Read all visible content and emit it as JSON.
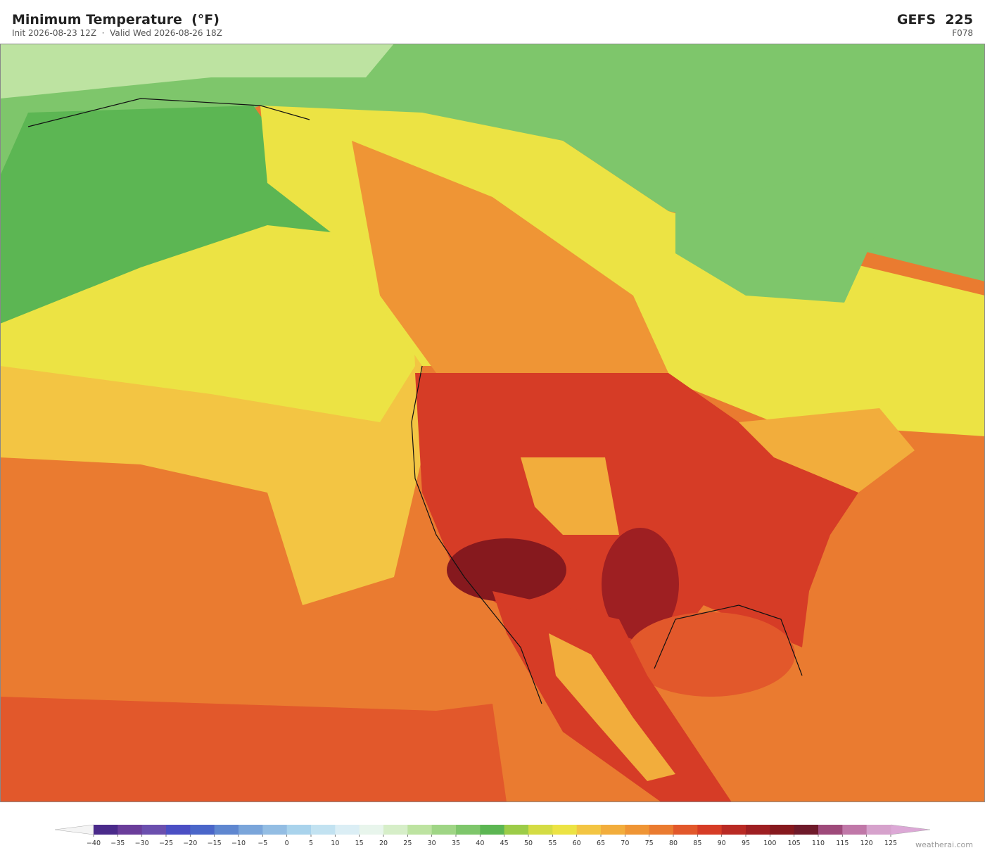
{
  "header": {
    "title": "Minimum Temperature  (°F)",
    "subtitle": "Init 2026-08-23 12Z  ·  Valid Wed 2026-08-26 18Z",
    "model": "GEFS  225",
    "forecast_hour": "F078"
  },
  "colorbar": {
    "ticks": [
      {
        "value": -40,
        "label": "−40"
      },
      {
        "value": -35,
        "label": "−35"
      },
      {
        "value": -30,
        "label": "−30"
      },
      {
        "value": -25,
        "label": "−25"
      },
      {
        "value": -20,
        "label": "−20"
      },
      {
        "value": -15,
        "label": "−15"
      },
      {
        "value": -10,
        "label": "−10"
      },
      {
        "value": -5,
        "label": "−5"
      },
      0,
      5,
      10,
      15,
      20,
      25,
      30,
      35,
      40,
      45,
      50,
      55,
      60,
      65,
      70,
      75,
      80,
      85,
      90,
      95,
      100,
      105,
      110,
      115,
      120,
      125
    ],
    "colors": [
      "#4a2a8a",
      "#6a3d9a",
      "#6b4fae",
      "#4b4fc4",
      "#4a66c9",
      "#5f87d0",
      "#7aa5da",
      "#93bde3",
      "#a9d3ec",
      "#c2e2f1",
      "#dbeef5",
      "#e8f5ec",
      "#d6eec8",
      "#bde3a1",
      "#9fd585",
      "#7ec66b",
      "#5cb653",
      "#9ccc48",
      "#d4dc44",
      "#ece344",
      "#f3c543",
      "#f2ad3c",
      "#ef9535",
      "#ea7b30",
      "#e2582b",
      "#d63c26",
      "#b92a24",
      "#9e1f22",
      "#86191e",
      "#6e1a2a",
      "#9e4a7a",
      "#c078a8",
      "#d6a2cc"
    ],
    "under_color": "#f4f4f4",
    "over_color": "#dca8d6"
  },
  "footer": {
    "credit": "weatherai.com"
  }
}
